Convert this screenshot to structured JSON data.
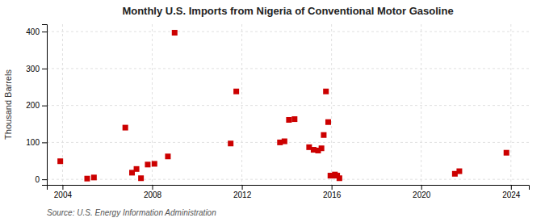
{
  "chart_data": {
    "type": "scatter",
    "title": "Monthly U.S. Imports from Nigeria of Conventional Motor Gasoline",
    "y_label": "Thousand Barrels",
    "source": "Source: U.S. Energy Information Administration",
    "x": [
      2003.9,
      2005.1,
      2005.4,
      2006.8,
      2007.1,
      2007.3,
      2007.5,
      2007.8,
      2008.1,
      2008.7,
      2009.0,
      2011.5,
      2011.75,
      2013.7,
      2013.9,
      2014.1,
      2014.35,
      2015.0,
      2015.2,
      2015.4,
      2015.55,
      2015.65,
      2015.75,
      2015.85,
      2015.95,
      2016.05,
      2016.15,
      2016.25,
      2016.35,
      2021.5,
      2021.7,
      2023.8
    ],
    "values": [
      49,
      2,
      5,
      140,
      18,
      28,
      3,
      40,
      42,
      62,
      397,
      97,
      238,
      100,
      103,
      161,
      163,
      87,
      80,
      78,
      84,
      120,
      238,
      155,
      10,
      10,
      13,
      10,
      3,
      15,
      22,
      72
    ],
    "color": "#cc0000",
    "marker": "square",
    "xlim": [
      2003.3,
      2024.8
    ],
    "ylim": [
      -15,
      420
    ],
    "xticks": [
      2004,
      2008,
      2012,
      2016,
      2020,
      2024
    ],
    "yticks": [
      0,
      100,
      200,
      300,
      400
    ],
    "grid": true
  }
}
